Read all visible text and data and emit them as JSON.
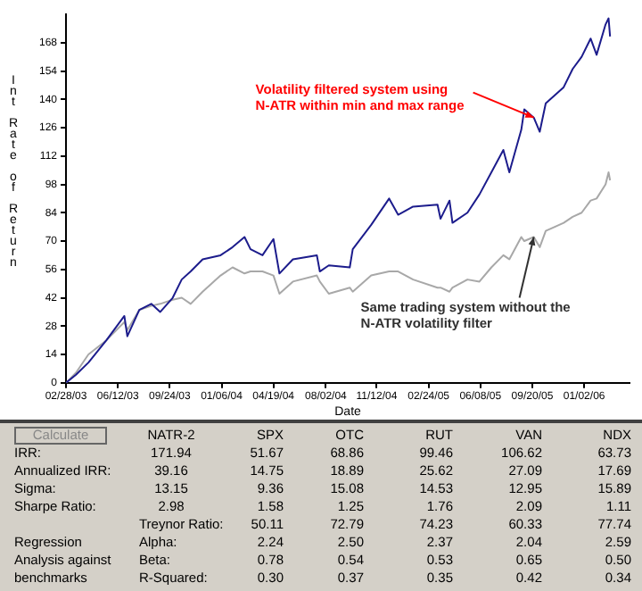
{
  "chart_data": [
    {
      "type": "line",
      "xlabel": "Date",
      "ylabel": "Int Rate of Return",
      "x": [
        "2003-02-28",
        "2003-03-20",
        "2003-04-14",
        "2003-05-20",
        "2003-06-25",
        "2003-07-01",
        "2003-07-25",
        "2003-08-18",
        "2003-09-05",
        "2003-09-30",
        "2003-10-18",
        "2003-11-05",
        "2003-11-29",
        "2004-01-04",
        "2004-01-28",
        "2004-02-21",
        "2004-03-04",
        "2004-03-28",
        "2004-04-19",
        "2004-05-01",
        "2004-05-28",
        "2004-07-15",
        "2004-07-21",
        "2004-08-08",
        "2004-09-19",
        "2004-09-25",
        "2004-11-01",
        "2004-12-07",
        "2004-12-25",
        "2005-01-24",
        "2005-03-14",
        "2005-03-20",
        "2005-04-07",
        "2005-04-13",
        "2005-05-13",
        "2005-06-06",
        "2005-06-30",
        "2005-07-24",
        "2005-08-05",
        "2005-08-29",
        "2005-09-04",
        "2005-09-23",
        "2005-10-05",
        "2005-10-17",
        "2005-11-22",
        "2005-12-10",
        "2005-12-28",
        "2006-01-15",
        "2006-01-27",
        "2006-02-14",
        "2006-02-20",
        "2006-02-23"
      ],
      "series": [
        {
          "color": "#1c1c8c",
          "values": [
            0,
            4,
            10,
            21,
            33,
            23,
            36,
            39,
            35,
            42,
            51,
            55,
            61,
            63,
            67,
            72,
            66,
            63,
            71,
            54,
            61,
            63,
            55,
            58,
            57,
            66,
            78,
            91,
            83,
            87,
            88,
            81,
            90,
            79,
            84,
            93,
            104,
            115,
            104,
            125,
            135,
            131,
            124,
            138,
            146,
            155,
            161,
            170,
            162,
            177,
            180,
            171
          ]
        },
        {
          "color": "#a8a8a8",
          "values": [
            0,
            5,
            14,
            21,
            30,
            26,
            36,
            38,
            39,
            41,
            42,
            39,
            45,
            53,
            57,
            54,
            55,
            55,
            53,
            44,
            50,
            53,
            50,
            44,
            47,
            45,
            53,
            55,
            55,
            51,
            47,
            47,
            45,
            47,
            51,
            50,
            57,
            63,
            61,
            72,
            70,
            72,
            67,
            75,
            79,
            82,
            84,
            90,
            91,
            98,
            104,
            100
          ]
        }
      ],
      "xlim": [
        "2003-02-28",
        "2006-04-03"
      ],
      "xticks": [
        {
          "value": "2003-02-28",
          "label": "02/28/03"
        },
        {
          "value": "2003-06-12",
          "label": "06/12/03"
        },
        {
          "value": "2003-09-24",
          "label": "09/24/03"
        },
        {
          "value": "2004-01-06",
          "label": "01/06/04"
        },
        {
          "value": "2004-04-19",
          "label": "04/19/04"
        },
        {
          "value": "2004-08-02",
          "label": "08/02/04"
        },
        {
          "value": "2004-11-12",
          "label": "11/12/04"
        },
        {
          "value": "2005-02-24",
          "label": "02/24/05"
        },
        {
          "value": "2005-06-08",
          "label": "06/08/05"
        },
        {
          "value": "2005-09-20",
          "label": "09/20/05"
        },
        {
          "value": "2006-01-02",
          "label": "01/02/06"
        }
      ],
      "ylim": [
        0,
        182
      ],
      "yticks": [
        0,
        14,
        28,
        42,
        56,
        70,
        84,
        98,
        112,
        126,
        140,
        154,
        168
      ],
      "grid": false,
      "legend": false,
      "marker": "none",
      "line_style": "solid",
      "annotations": [
        {
          "text": "Volatility filtered system using N-ATR within min and max range",
          "x": "2005-09-23",
          "y": 131
        },
        {
          "text": "Same trading system without the N-ATR volatility filter",
          "x": "2005-09-23",
          "y": 72
        }
      ]
    },
    {
      "type": "heatmap",
      "data_labels": true,
      "categories": [
        "NATR-2",
        "SPX",
        "OTC",
        "RUT",
        "VAN",
        "NDX"
      ],
      "y_categories": [
        "IRR:",
        "Annualized IRR:",
        "Sigma:",
        "Sharpe Ratio:",
        "Treynor Ratio:",
        "Alpha:",
        "Beta:",
        "R-Squared:"
      ],
      "cells": [
        [
          171.94,
          51.67,
          68.86,
          99.46,
          106.62,
          63.73
        ],
        [
          39.16,
          14.75,
          18.89,
          25.62,
          27.09,
          17.69
        ],
        [
          13.15,
          9.36,
          15.08,
          14.53,
          12.95,
          15.89
        ],
        [
          2.98,
          1.58,
          1.25,
          1.76,
          2.09,
          1.11
        ],
        [
          null,
          50.11,
          72.79,
          74.23,
          60.33,
          77.74
        ],
        [
          null,
          2.24,
          2.5,
          2.37,
          2.04,
          2.59
        ],
        [
          null,
          0.78,
          0.54,
          0.53,
          0.65,
          0.5
        ],
        [
          null,
          0.3,
          0.37,
          0.35,
          0.42,
          0.34
        ]
      ],
      "cell_labels": [
        [
          "171.94",
          "51.67",
          "68.86",
          "99.46",
          "106.62",
          "63.73"
        ],
        [
          "39.16",
          "14.75",
          "18.89",
          "25.62",
          "27.09",
          "17.69"
        ],
        [
          "13.15",
          "9.36",
          "15.08",
          "14.53",
          "12.95",
          "15.89"
        ],
        [
          "2.98",
          "1.58",
          "1.25",
          "1.76",
          "2.09",
          "1.11"
        ],
        [
          null,
          "50.11",
          "72.79",
          "74.23",
          "60.33",
          "77.74"
        ],
        [
          null,
          "2.24",
          "2.50",
          "2.37",
          "2.04",
          "2.59"
        ],
        [
          null,
          "0.78",
          "0.54",
          "0.53",
          "0.65",
          "0.50"
        ],
        [
          null,
          "0.30",
          "0.37",
          "0.35",
          "0.42",
          "0.34"
        ]
      ],
      "annotations": [
        "Calculate",
        "Regression Analysis against benchmarks"
      ]
    }
  ]
}
